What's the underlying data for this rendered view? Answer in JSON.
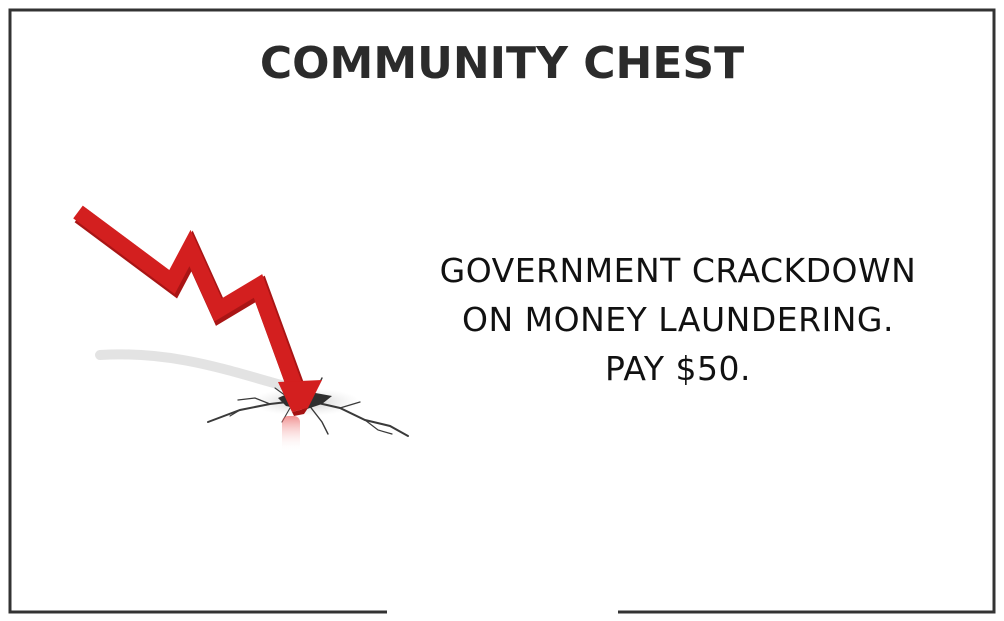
{
  "card": {
    "deck_title": "COMMUNITY CHEST",
    "message_lines": [
      "GOVERNMENT CRACKDOWN",
      "ON MONEY LAUNDERING.",
      "PAY $50."
    ],
    "illustration": "falling-red-arrow-crack-icon"
  },
  "colors": {
    "border": "#333333",
    "title": "#2b2b2b",
    "text": "#111111",
    "arrow": "#d31f1f"
  }
}
